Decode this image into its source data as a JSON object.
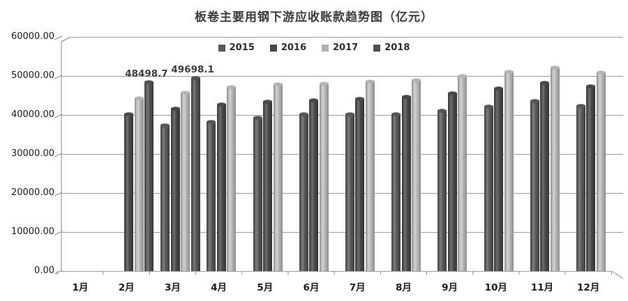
{
  "title": "板卷主要用钢下游应收账款趋势图（亿元）",
  "legend": {
    "position": "top-center",
    "items": [
      "2015",
      "2016",
      "2017",
      "2018"
    ]
  },
  "chart_data": {
    "type": "bar",
    "style_hint": "3d-cylinder-grayscale-clustered",
    "title": "板卷主要用钢下游应收账款趋势图（亿元）",
    "xlabel": "",
    "ylabel": "",
    "categories": [
      "1月",
      "2月",
      "3月",
      "4月",
      "5月",
      "6月",
      "7月",
      "8月",
      "9月",
      "10月",
      "11月",
      "12月"
    ],
    "series": [
      {
        "name": "2015",
        "legend_color": "#585858",
        "shade_dark": "#3f3f3f",
        "shade_light": "#7d7d7d",
        "shade_mid": "#565656",
        "values": [
          null,
          null,
          37500,
          38400,
          39400,
          40400,
          40300,
          40400,
          41200,
          42300,
          43700,
          42500
        ]
      },
      {
        "name": "2016",
        "legend_color": "#464646",
        "shade_dark": "#353535",
        "shade_light": "#6f6f6f",
        "shade_mid": "#484848",
        "values": [
          null,
          40400,
          41800,
          42900,
          43600,
          44000,
          44300,
          44800,
          45800,
          47000,
          48400,
          47500
        ]
      },
      {
        "name": "2017",
        "legend_color": "#b2b2b2",
        "shade_dark": "#8e8e8e",
        "shade_light": "#d4d4d4",
        "shade_mid": "#b4b4b4",
        "values": [
          null,
          44500,
          45900,
          47300,
          48000,
          48300,
          48700,
          49100,
          50200,
          51200,
          52400,
          51000
        ]
      },
      {
        "name": "2018",
        "legend_color": "#4f4f4f",
        "shade_dark": "#3a3a3a",
        "shade_light": "#777777",
        "shade_mid": "#515151",
        "values": [
          null,
          48498.7,
          49698.1,
          null,
          null,
          null,
          null,
          null,
          null,
          null,
          null,
          null
        ]
      }
    ],
    "data_labels": [
      {
        "series": "2018",
        "category": "2月",
        "text": "48498.7"
      },
      {
        "series": "2018",
        "category": "3月",
        "text": "49698.1"
      }
    ],
    "y_axis": {
      "min": 0,
      "max": 60000,
      "step": 10000,
      "tick_labels": [
        "0.00",
        "10000.00",
        "20000.00",
        "30000.00",
        "40000.00",
        "50000.00",
        "60000.00"
      ]
    },
    "grid": true,
    "legend_position": "top-center",
    "colors": {
      "background": "#ffffff",
      "gridline": "#9c9c9c",
      "axis": "#8a8a8a",
      "text": "#1c1c1c",
      "title_text": "#3c3c3c"
    }
  }
}
